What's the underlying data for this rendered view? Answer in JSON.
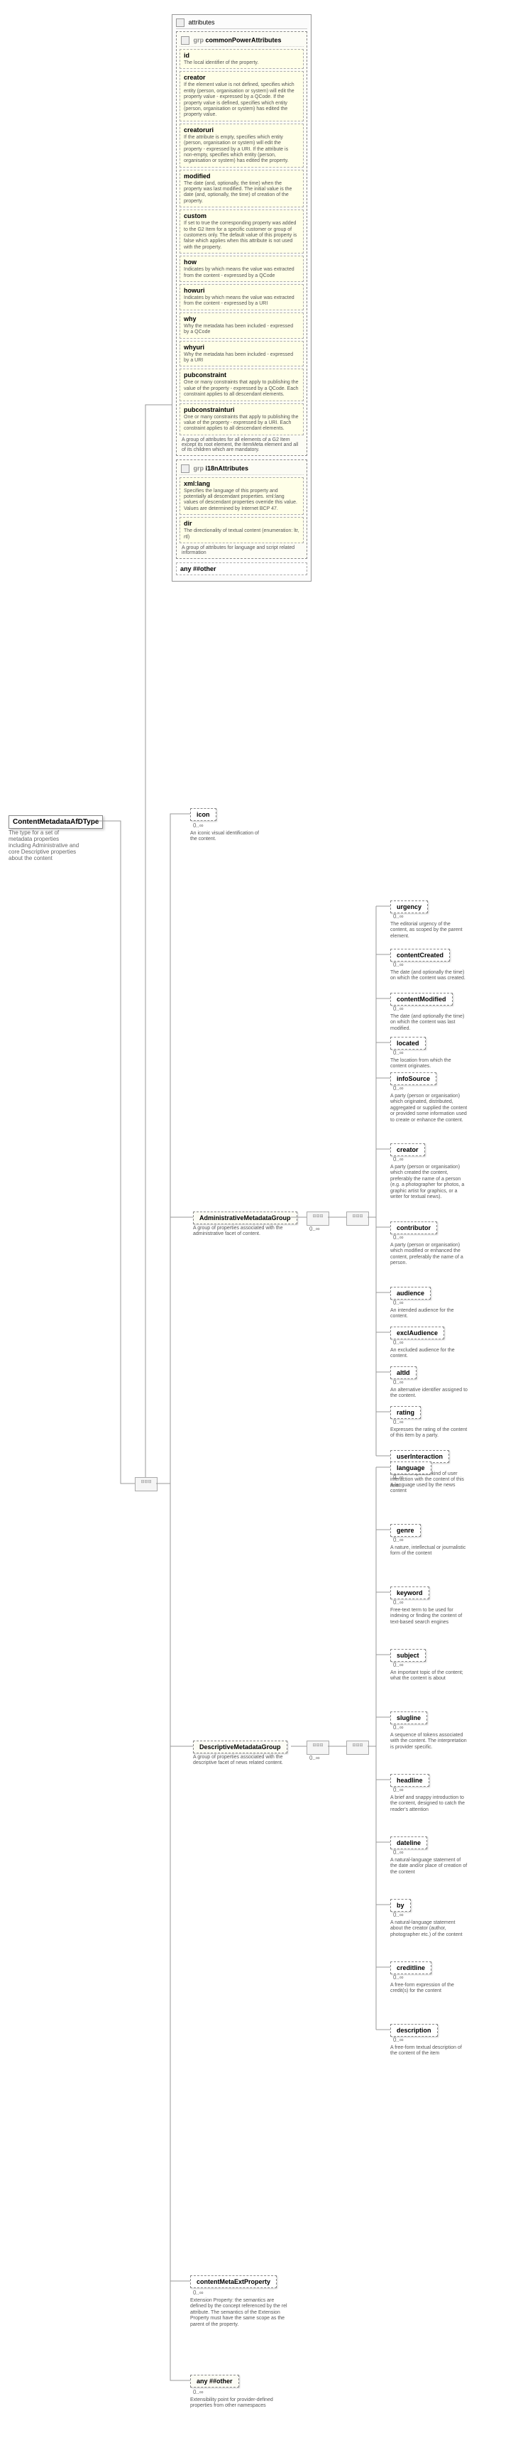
{
  "root": {
    "name": "ContentMetadataAfDType",
    "desc": "The type for a set of metadata properties including Administrative and core Descriptive properties about the content"
  },
  "attributes_header": "attributes",
  "groups": [
    {
      "name": "commonPowerAttributes",
      "prefix": "grp",
      "items": [
        {
          "name": "id",
          "desc": "The local identifier of the property."
        },
        {
          "name": "creator",
          "desc": "If the element value is not defined, specifies which entity (person, organisation or system) will edit the property value - expressed by a QCode. If the property value is defined, specifies which entity (person, organisation or system) has edited the property value."
        },
        {
          "name": "creatoruri",
          "desc": "If the attribute is empty, specifies which entity (person, organisation or system) will edit the property - expressed by a URI. If the attribute is non-empty, specifies which entity (person, organisation or system) has edited the property."
        },
        {
          "name": "modified",
          "desc": "The date (and, optionally, the time) when the property was last modified. The initial value is the date (and, optionally, the time) of creation of the property."
        },
        {
          "name": "custom",
          "desc": "If set to true the corresponding property was added to the G2 Item for a specific customer or group of customers only. The default value of this property is false which applies when this attribute is not used with the property."
        },
        {
          "name": "how",
          "desc": "Indicates by which means the value was extracted from the content - expressed by a QCode"
        },
        {
          "name": "howuri",
          "desc": "Indicates by which means the value was extracted from the content - expressed by a URI"
        },
        {
          "name": "why",
          "desc": "Why the metadata has been included - expressed by a QCode"
        },
        {
          "name": "whyuri",
          "desc": "Why the metadata has been included - expressed by a URI"
        },
        {
          "name": "pubconstraint",
          "desc": "One or many constraints that apply to publishing the value of the property - expressed by a QCode. Each constraint applies to all descendant elements."
        },
        {
          "name": "pubconstrainturi",
          "desc": "One or many constraints that apply to publishing the value of the property - expressed by a URI. Each constraint applies to all descendant elements."
        }
      ],
      "desc": "A group of attributes for all elements of a G2 Item except its root element, the itemMeta element and all of its children which are mandatory."
    },
    {
      "name": "i18nAttributes",
      "prefix": "grp",
      "items": [
        {
          "name": "xml:lang",
          "desc": "Specifies the language of this property and potentially all descendant properties. xml:lang values of descendant properties override this value. Values are determined by Internet BCP 47."
        },
        {
          "name": "dir",
          "desc": "The directionality of textual content (enumeration: ltr, rtl)"
        }
      ],
      "desc": "A group of attributes for language and script related information"
    }
  ],
  "any_attr": "any ##other",
  "icon": {
    "name": "icon",
    "occ": "0..∞",
    "desc": "An iconic visual identification of the content."
  },
  "admin_group": {
    "name": "AdministrativeMetadataGroup",
    "desc": "A group of properties associated with the administrative facet of content.",
    "items": [
      {
        "name": "urgency",
        "occ": "0..∞",
        "desc": "The editorial urgency of the content, as scoped by the parent element."
      },
      {
        "name": "contentCreated",
        "occ": "0..∞",
        "desc": "The date (and optionally the time) on which the content was created."
      },
      {
        "name": "contentModified",
        "occ": "0..∞",
        "desc": "The date (and optionally the time) on which the content was last modified."
      },
      {
        "name": "located",
        "occ": "0..∞",
        "desc": "The location from which the content originates."
      },
      {
        "name": "infoSource",
        "occ": "0..∞",
        "desc": "A party (person or organisation) which originated, distributed, aggregated or supplied the content or provided some information used to create or enhance the content."
      },
      {
        "name": "creator",
        "occ": "0..∞",
        "desc": "A party (person or organisation) which created the content, preferably the name of a person (e.g. a photographer for photos, a graphic artist for graphics, or a writer for textual news)."
      },
      {
        "name": "contributor",
        "occ": "0..∞",
        "desc": "A party (person or organisation) which modified or enhanced the content, preferably the name of a person."
      },
      {
        "name": "audience",
        "occ": "0..∞",
        "desc": "An intended audience for the content."
      },
      {
        "name": "exclAudience",
        "occ": "0..∞",
        "desc": "An excluded audience for the content."
      },
      {
        "name": "altId",
        "occ": "0..∞",
        "desc": "An alternative identifier assigned to the content."
      },
      {
        "name": "rating",
        "occ": "0..∞",
        "desc": "Expresses the rating of the content of this item by a party."
      },
      {
        "name": "userInteraction",
        "occ": "0..∞",
        "desc": "Reflects a specific kind of user interaction with the content of this item."
      }
    ]
  },
  "desc_group": {
    "name": "DescriptiveMetadataGroup",
    "desc": "A group of properties associated with the descriptive facet of news related content.",
    "items": [
      {
        "name": "language",
        "occ": "0..∞",
        "desc": "A language used by the news content"
      },
      {
        "name": "genre",
        "occ": "0..∞",
        "desc": "A nature, intellectual or journalistic form of the content"
      },
      {
        "name": "keyword",
        "occ": "0..∞",
        "desc": "Free-text term to be used for indexing or finding the content of text-based search engines"
      },
      {
        "name": "subject",
        "occ": "0..∞",
        "desc": "An important topic of the content; what the content is about"
      },
      {
        "name": "slugline",
        "occ": "0..∞",
        "desc": "A sequence of tokens associated with the content. The interpretation is provider specific."
      },
      {
        "name": "headline",
        "occ": "0..∞",
        "desc": "A brief and snappy introduction to the content, designed to catch the reader's attention"
      },
      {
        "name": "dateline",
        "occ": "0..∞",
        "desc": "A natural-language statement of the date and/or place of creation of the content"
      },
      {
        "name": "by",
        "occ": "0..∞",
        "desc": "A natural-language statement about the creator (author, photographer etc.) of the content"
      },
      {
        "name": "creditline",
        "occ": "0..∞",
        "desc": "A free-form expression of the credit(s) for the content"
      },
      {
        "name": "description",
        "occ": "0..∞",
        "desc": "A free-form textual description of the content of the item"
      }
    ]
  },
  "ext_prop": {
    "name": "contentMetaExtProperty",
    "occ": "0..∞",
    "desc": "Extension Property: the semantics are defined by the concept referenced by the rel attribute. The semantics of the Extension Property must have the same scope as the parent of the property."
  },
  "any_other": {
    "name": "any ##other",
    "occ": "0..∞",
    "desc": "Extensibility point for provider-defined properties from other namespaces"
  }
}
